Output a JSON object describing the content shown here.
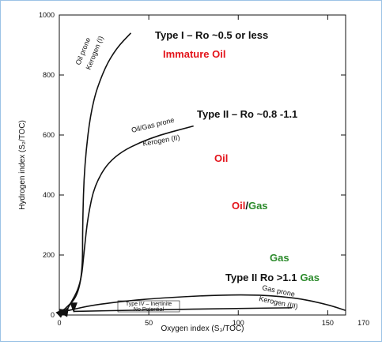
{
  "chart_data": {
    "type": "line",
    "xlabel": "Oxygen index (S₃/TOC)",
    "ylabel": "Hydrogen index (S₂/TOC)",
    "xlim": [
      0,
      160
    ],
    "ylim": [
      0,
      1000
    ],
    "xticks": [
      0,
      50,
      100,
      150,
      170
    ],
    "yticks": [
      0,
      200,
      400,
      600,
      800,
      1000
    ],
    "series": [
      {
        "color": "#111111",
        "x": [
          3,
          10,
          13,
          13,
          14,
          18,
          25,
          32,
          40
        ],
        "values": [
          20,
          60,
          150,
          300,
          500,
          700,
          820,
          890,
          940
        ]
      },
      {
        "color": "#111111",
        "x": [
          5,
          12,
          14,
          16,
          20,
          30,
          50,
          75
        ],
        "values": [
          25,
          100,
          220,
          330,
          440,
          530,
          590,
          630
        ]
      },
      {
        "color": "#111111",
        "x": [
          5,
          20,
          50,
          100,
          130,
          150,
          160
        ],
        "values": [
          15,
          35,
          55,
          70,
          60,
          35,
          15
        ]
      },
      {
        "color": "#111111",
        "x": [
          8,
          50,
          100,
          130
        ],
        "values": [
          12,
          17,
          22,
          24
        ]
      }
    ],
    "curve_labels": [
      "Oil prone",
      "Kerogen (I)",
      "Oil/Gas prone",
      "Kerogen (II)",
      "Gas prone",
      "Kerogen (III)",
      "Type IV – Inertinite",
      "No Potential"
    ],
    "annotations": {
      "type1": "Type I – Ro ~0.5  or less",
      "immature": "Immature Oil",
      "type2": "Type II – Ro ~0.8 -1.1",
      "oil": "Oil",
      "oil_gas": [
        "Oil",
        "/",
        "Gas"
      ],
      "gas": "Gas",
      "type2_gas": [
        "Type II Ro >1.1",
        "Gas"
      ]
    }
  }
}
